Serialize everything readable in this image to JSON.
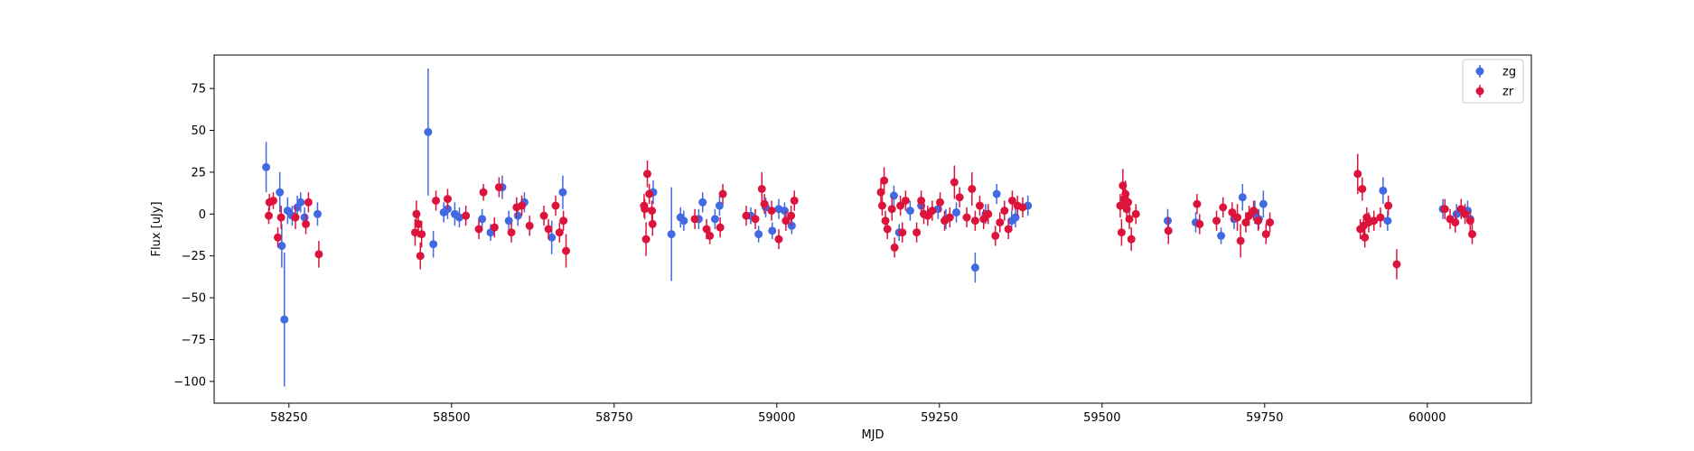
{
  "chart_data": {
    "type": "scatter",
    "xlabel": "MJD",
    "ylabel": "Flux [uJy]",
    "xlim": [
      58135,
      60160
    ],
    "ylim": [
      -113,
      95
    ],
    "xticks": [
      58250,
      58500,
      58750,
      59000,
      59250,
      59500,
      59750,
      60000
    ],
    "yticks": [
      -100,
      -75,
      -50,
      -25,
      0,
      25,
      50,
      75
    ],
    "legend_position": "top-right",
    "grid": false,
    "series": [
      {
        "name": "zg",
        "color": "#4169e1",
        "points": [
          [
            58215,
            28,
            15
          ],
          [
            58236,
            13,
            12
          ],
          [
            58239,
            -19,
            13
          ],
          [
            58243,
            -63,
            40
          ],
          [
            58248,
            2,
            8
          ],
          [
            58255,
            -1,
            6
          ],
          [
            58263,
            4,
            7
          ],
          [
            58268,
            7,
            6
          ],
          [
            58274,
            -2,
            6
          ],
          [
            58294,
            0,
            7
          ],
          [
            58464,
            49,
            38
          ],
          [
            58472,
            -18,
            8
          ],
          [
            58488,
            1,
            6
          ],
          [
            58494,
            3,
            6
          ],
          [
            58505,
            0,
            7
          ],
          [
            58512,
            -2,
            6
          ],
          [
            58547,
            -3,
            6
          ],
          [
            58560,
            -11,
            5
          ],
          [
            58578,
            16,
            7
          ],
          [
            58588,
            -4,
            6
          ],
          [
            58602,
            -1,
            6
          ],
          [
            58612,
            7,
            6
          ],
          [
            58654,
            -14,
            10
          ],
          [
            58671,
            13,
            10
          ],
          [
            58810,
            13,
            7
          ],
          [
            58838,
            -12,
            28
          ],
          [
            58852,
            -2,
            6
          ],
          [
            58857,
            -4,
            6
          ],
          [
            58880,
            -3,
            6
          ],
          [
            58886,
            7,
            6
          ],
          [
            58905,
            -3,
            6
          ],
          [
            58912,
            5,
            6
          ],
          [
            58960,
            -1,
            5
          ],
          [
            58972,
            -12,
            5
          ],
          [
            58983,
            4,
            6
          ],
          [
            58993,
            -10,
            5
          ],
          [
            59003,
            3,
            6
          ],
          [
            59012,
            2,
            5
          ],
          [
            59023,
            -7,
            5
          ],
          [
            59180,
            11,
            6
          ],
          [
            59188,
            -11,
            5
          ],
          [
            59205,
            2,
            6
          ],
          [
            59222,
            5,
            6
          ],
          [
            59248,
            3,
            6
          ],
          [
            59260,
            -3,
            6
          ],
          [
            59276,
            1,
            6
          ],
          [
            59305,
            -32,
            9
          ],
          [
            59321,
            0,
            6
          ],
          [
            59338,
            12,
            6
          ],
          [
            59361,
            -4,
            6
          ],
          [
            59367,
            -2,
            6
          ],
          [
            59386,
            5,
            6
          ],
          [
            59601,
            -4,
            7
          ],
          [
            59644,
            -5,
            6
          ],
          [
            59683,
            -13,
            5
          ],
          [
            59703,
            -3,
            6
          ],
          [
            59716,
            10,
            8
          ],
          [
            59735,
            1,
            7
          ],
          [
            59741,
            -3,
            6
          ],
          [
            59748,
            6,
            8
          ],
          [
            59932,
            14,
            8
          ],
          [
            59939,
            -4,
            6
          ],
          [
            60024,
            3,
            6
          ],
          [
            60045,
            0,
            6
          ],
          [
            60062,
            2,
            6
          ],
          [
            60066,
            -3,
            6
          ]
        ]
      },
      {
        "name": "zr",
        "color": "#dc143c",
        "points": [
          [
            58219,
            -1,
            5
          ],
          [
            58220,
            7,
            5
          ],
          [
            58226,
            8,
            5
          ],
          [
            58233,
            -14,
            6
          ],
          [
            58238,
            -2,
            7
          ],
          [
            58260,
            -2,
            7
          ],
          [
            58276,
            -6,
            6
          ],
          [
            58280,
            7,
            6
          ],
          [
            58296,
            -24,
            8
          ],
          [
            58444,
            -11,
            8
          ],
          [
            58446,
            0,
            8
          ],
          [
            58449,
            -6,
            8
          ],
          [
            58452,
            -25,
            8
          ],
          [
            58454,
            -12,
            8
          ],
          [
            58476,
            8,
            6
          ],
          [
            58494,
            9,
            6
          ],
          [
            58522,
            -1,
            6
          ],
          [
            58542,
            -9,
            6
          ],
          [
            58549,
            13,
            5
          ],
          [
            58566,
            -8,
            6
          ],
          [
            58573,
            16,
            6
          ],
          [
            58592,
            -11,
            6
          ],
          [
            58600,
            4,
            6
          ],
          [
            58608,
            5,
            6
          ],
          [
            58620,
            -7,
            6
          ],
          [
            58642,
            -1,
            6
          ],
          [
            58649,
            -9,
            6
          ],
          [
            58660,
            5,
            6
          ],
          [
            58666,
            -11,
            6
          ],
          [
            58672,
            -4,
            6
          ],
          [
            58676,
            -22,
            10
          ],
          [
            58796,
            5,
            7
          ],
          [
            58797,
            3,
            6
          ],
          [
            58799,
            -15,
            10
          ],
          [
            58801,
            24,
            8
          ],
          [
            58804,
            12,
            6
          ],
          [
            58808,
            2,
            6
          ],
          [
            58809,
            -6,
            7
          ],
          [
            58874,
            -3,
            6
          ],
          [
            58892,
            -9,
            6
          ],
          [
            58897,
            -13,
            5
          ],
          [
            58913,
            -8,
            6
          ],
          [
            58917,
            12,
            6
          ],
          [
            58953,
            -1,
            6
          ],
          [
            58967,
            -3,
            6
          ],
          [
            58977,
            15,
            10
          ],
          [
            58981,
            6,
            6
          ],
          [
            58992,
            2,
            6
          ],
          [
            59003,
            -15,
            6
          ],
          [
            59014,
            -4,
            6
          ],
          [
            59022,
            -1,
            6
          ],
          [
            59027,
            8,
            6
          ],
          [
            59160,
            13,
            6
          ],
          [
            59162,
            5,
            6
          ],
          [
            59165,
            20,
            8
          ],
          [
            59167,
            -4,
            6
          ],
          [
            59170,
            -9,
            6
          ],
          [
            59177,
            3,
            7
          ],
          [
            59181,
            -20,
            6
          ],
          [
            59190,
            5,
            6
          ],
          [
            59193,
            -11,
            6
          ],
          [
            59198,
            8,
            6
          ],
          [
            59215,
            -11,
            6
          ],
          [
            59222,
            8,
            6
          ],
          [
            59226,
            0,
            6
          ],
          [
            59232,
            -1,
            6
          ],
          [
            59239,
            2,
            6
          ],
          [
            59251,
            7,
            6
          ],
          [
            59258,
            -4,
            6
          ],
          [
            59266,
            -2,
            6
          ],
          [
            59273,
            19,
            10
          ],
          [
            59281,
            10,
            6
          ],
          [
            59292,
            -2,
            6
          ],
          [
            59300,
            15,
            10
          ],
          [
            59305,
            -4,
            6
          ],
          [
            59312,
            5,
            6
          ],
          [
            59318,
            -3,
            6
          ],
          [
            59325,
            0,
            6
          ],
          [
            59336,
            -13,
            6
          ],
          [
            59343,
            -5,
            6
          ],
          [
            59350,
            2,
            6
          ],
          [
            59356,
            -9,
            6
          ],
          [
            59362,
            8,
            6
          ],
          [
            59370,
            5,
            6
          ],
          [
            59378,
            4,
            6
          ],
          [
            59528,
            5,
            7
          ],
          [
            59530,
            -11,
            8
          ],
          [
            59532,
            17,
            10
          ],
          [
            59534,
            9,
            8
          ],
          [
            59536,
            12,
            8
          ],
          [
            59538,
            3,
            6
          ],
          [
            59540,
            7,
            6
          ],
          [
            59542,
            -3,
            6
          ],
          [
            59545,
            -15,
            7
          ],
          [
            59552,
            0,
            6
          ],
          [
            59602,
            -10,
            8
          ],
          [
            59646,
            6,
            6
          ],
          [
            59650,
            -6,
            6
          ],
          [
            59676,
            -4,
            6
          ],
          [
            59686,
            4,
            6
          ],
          [
            59700,
            1,
            6
          ],
          [
            59708,
            -2,
            8
          ],
          [
            59713,
            -16,
            10
          ],
          [
            59721,
            -5,
            6
          ],
          [
            59726,
            -1,
            6
          ],
          [
            59733,
            2,
            6
          ],
          [
            59740,
            -4,
            6
          ],
          [
            59752,
            -12,
            6
          ],
          [
            59758,
            -5,
            6
          ],
          [
            59893,
            24,
            12
          ],
          [
            59897,
            -9,
            6
          ],
          [
            59900,
            15,
            7
          ],
          [
            59902,
            -7,
            6
          ],
          [
            59904,
            -14,
            6
          ],
          [
            59907,
            -2,
            6
          ],
          [
            59910,
            -5,
            6
          ],
          [
            59918,
            -4,
            6
          ],
          [
            59928,
            -2,
            6
          ],
          [
            59940,
            5,
            6
          ],
          [
            59953,
            -30,
            9
          ],
          [
            60027,
            3,
            6
          ],
          [
            60035,
            -3,
            6
          ],
          [
            60043,
            -5,
            6
          ],
          [
            60052,
            3,
            6
          ],
          [
            60058,
            0,
            6
          ],
          [
            60066,
            -4,
            6
          ],
          [
            60069,
            -12,
            6
          ]
        ]
      }
    ]
  }
}
